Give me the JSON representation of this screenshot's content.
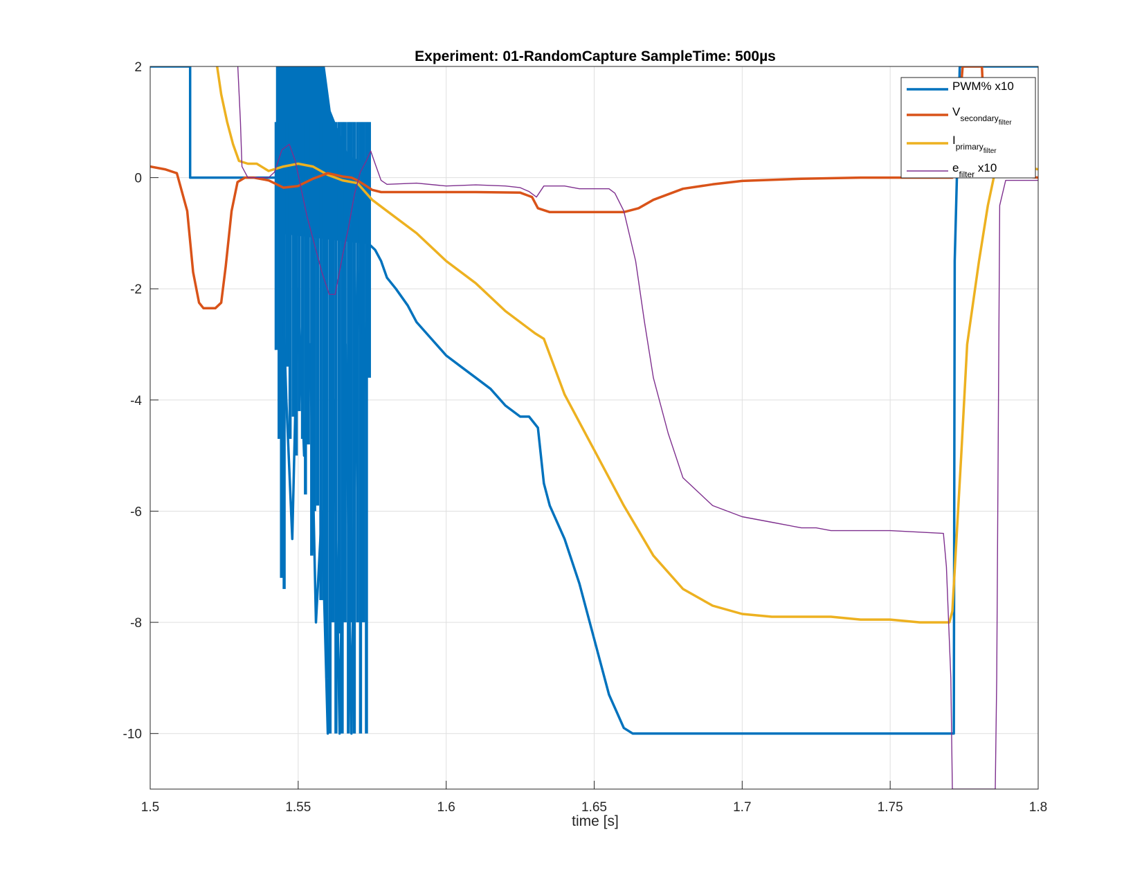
{
  "chart_data": {
    "type": "line",
    "title": "Experiment: 01-RandomCapture   SampleTime: 500µs",
    "xlabel": "time [s]",
    "ylabel": "",
    "xlim": [
      1.5,
      1.8
    ],
    "ylim": [
      -11,
      2
    ],
    "xticks": [
      1.5,
      1.55,
      1.6,
      1.65,
      1.7,
      1.75,
      1.8
    ],
    "xtick_labels": [
      "1.5",
      "1.55",
      "1.6",
      "1.65",
      "1.7",
      "1.75",
      "1.8"
    ],
    "yticks": [
      2,
      0,
      -2,
      -4,
      -6,
      -8,
      -10
    ],
    "ytick_labels": [
      "2",
      "0",
      "-2",
      "-4",
      "-6",
      "-8",
      "-10"
    ],
    "grid": true,
    "legend_position": "top-right",
    "legend": [
      {
        "base": "PWM% x10",
        "sub": "",
        "subsub": "",
        "suffix": ""
      },
      {
        "base": "V",
        "sub": "secondary",
        "subsub": "filter",
        "suffix": ""
      },
      {
        "base": "I",
        "sub": "primary",
        "subsub": "filter",
        "suffix": ""
      },
      {
        "base": "e",
        "sub": "filter",
        "subsub": "",
        "suffix": " x10"
      }
    ],
    "series": [
      {
        "name": "PWM% x10",
        "color": "#0072BD",
        "width": 3.5,
        "x": [
          1.5,
          1.5135,
          1.5135,
          1.5335,
          1.5425,
          1.5445,
          1.546,
          1.548,
          1.55,
          1.552,
          1.554,
          1.556,
          1.558,
          1.56,
          1.562,
          1.564,
          1.566,
          1.568,
          1.57,
          1.572,
          1.574,
          1.576,
          1.578,
          1.58,
          1.583,
          1.587,
          1.59,
          1.595,
          1.6,
          1.605,
          1.61,
          1.615,
          1.62,
          1.625,
          1.628,
          1.631,
          1.633,
          1.635,
          1.64,
          1.645,
          1.65,
          1.655,
          1.66,
          1.663,
          1.664,
          1.7,
          1.75,
          1.7715,
          1.7718,
          1.7735,
          1.8
        ],
        "y": [
          2,
          2,
          0,
          0,
          0,
          -1.5,
          -4,
          -6.5,
          -2,
          -5,
          -3,
          -8,
          -6,
          -10,
          -4,
          -10,
          -3,
          -10,
          -1.5,
          -4,
          -1.2,
          -1.3,
          -1.5,
          -1.8,
          -2.0,
          -2.3,
          -2.6,
          -2.9,
          -3.2,
          -3.4,
          -3.6,
          -3.8,
          -4.1,
          -4.3,
          -4.3,
          -4.5,
          -5.5,
          -5.9,
          -6.5,
          -7.3,
          -8.3,
          -9.3,
          -9.9,
          -10,
          -10,
          -10,
          -10,
          -10,
          -1.5,
          2,
          2
        ]
      },
      {
        "name": "V secondary filter",
        "color": "#D95319",
        "width": 3.5,
        "x": [
          1.5,
          1.505,
          1.509,
          1.5125,
          1.5145,
          1.5165,
          1.518,
          1.522,
          1.524,
          1.5255,
          1.5275,
          1.5295,
          1.532,
          1.535,
          1.54,
          1.545,
          1.55,
          1.555,
          1.56,
          1.565,
          1.568,
          1.57,
          1.573,
          1.575,
          1.578,
          1.585,
          1.6,
          1.61,
          1.625,
          1.629,
          1.631,
          1.635,
          1.64,
          1.65,
          1.66,
          1.665,
          1.67,
          1.675,
          1.68,
          1.69,
          1.7,
          1.72,
          1.74,
          1.76,
          1.77,
          1.771,
          1.773,
          1.7745,
          1.781,
          1.782,
          1.79,
          1.8
        ],
        "y": [
          0.2,
          0.15,
          0.08,
          -0.6,
          -1.7,
          -2.25,
          -2.35,
          -2.35,
          -2.25,
          -1.6,
          -0.6,
          -0.08,
          0.0,
          0.0,
          -0.05,
          -0.18,
          -0.15,
          -0.02,
          0.08,
          0.02,
          0.0,
          -0.05,
          -0.15,
          -0.22,
          -0.26,
          -0.26,
          -0.26,
          -0.26,
          -0.27,
          -0.35,
          -0.55,
          -0.62,
          -0.62,
          -0.62,
          -0.62,
          -0.55,
          -0.4,
          -0.3,
          -0.2,
          -0.12,
          -0.06,
          -0.02,
          0.0,
          0.0,
          0.0,
          0.0,
          1.0,
          2.0,
          2.0,
          0.8,
          0.05,
          0.0
        ]
      },
      {
        "name": "I primary filter",
        "color": "#EDB120",
        "width": 3.5,
        "x": [
          1.5226,
          1.524,
          1.526,
          1.528,
          1.53,
          1.533,
          1.536,
          1.54,
          1.545,
          1.55,
          1.555,
          1.56,
          1.565,
          1.57,
          1.575,
          1.58,
          1.59,
          1.6,
          1.61,
          1.62,
          1.63,
          1.633,
          1.64,
          1.65,
          1.66,
          1.67,
          1.68,
          1.69,
          1.7,
          1.71,
          1.72,
          1.73,
          1.74,
          1.75,
          1.76,
          1.77,
          1.771,
          1.774,
          1.776,
          1.78,
          1.783,
          1.785,
          1.787,
          1.79,
          1.795,
          1.8
        ],
        "y": [
          2.0,
          1.5,
          1.0,
          0.6,
          0.3,
          0.25,
          0.25,
          0.12,
          0.2,
          0.25,
          0.2,
          0.05,
          -0.05,
          -0.1,
          -0.4,
          -0.6,
          -1.0,
          -1.5,
          -1.9,
          -2.4,
          -2.8,
          -2.9,
          -3.9,
          -4.9,
          -5.9,
          -6.8,
          -7.4,
          -7.7,
          -7.85,
          -7.9,
          -7.9,
          -7.9,
          -7.95,
          -7.95,
          -8.0,
          -8.0,
          -7.8,
          -5.0,
          -3.0,
          -1.5,
          -0.5,
          0.0,
          0.15,
          0.2,
          0.2,
          0.15
        ]
      },
      {
        "name": "e filter x10",
        "color": "#7E2F8E",
        "width": 1.4,
        "x": [
          1.5296,
          1.5305,
          1.531,
          1.533,
          1.535,
          1.54,
          1.542,
          1.5445,
          1.547,
          1.549,
          1.551,
          1.553,
          1.555,
          1.558,
          1.5605,
          1.5625,
          1.565,
          1.567,
          1.569,
          1.571,
          1.573,
          1.5745,
          1.576,
          1.578,
          1.58,
          1.59,
          1.6,
          1.61,
          1.62,
          1.625,
          1.628,
          1.6305,
          1.633,
          1.64,
          1.645,
          1.65,
          1.655,
          1.657,
          1.66,
          1.664,
          1.667,
          1.67,
          1.675,
          1.68,
          1.69,
          1.7,
          1.71,
          1.72,
          1.725,
          1.73,
          1.75,
          1.768,
          1.769,
          1.7705,
          1.771,
          1.7713,
          1.7855,
          1.786,
          1.787,
          1.789,
          1.8
        ],
        "y": [
          2.0,
          1.0,
          0.2,
          0.0,
          0.0,
          0.0,
          0.1,
          0.5,
          0.6,
          0.3,
          -0.2,
          -0.7,
          -1.1,
          -1.7,
          -2.1,
          -2.1,
          -1.4,
          -0.9,
          -0.3,
          0.1,
          0.3,
          0.48,
          0.25,
          -0.05,
          -0.12,
          -0.1,
          -0.15,
          -0.13,
          -0.15,
          -0.18,
          -0.25,
          -0.35,
          -0.15,
          -0.15,
          -0.2,
          -0.2,
          -0.2,
          -0.28,
          -0.6,
          -1.5,
          -2.6,
          -3.6,
          -4.6,
          -5.4,
          -5.9,
          -6.1,
          -6.2,
          -6.3,
          -6.3,
          -6.35,
          -6.35,
          -6.4,
          -7.0,
          -9.0,
          -11.0,
          -11.0,
          -11.0,
          -9.0,
          -0.5,
          -0.05,
          -0.05
        ]
      }
    ],
    "pwm_bursts": [
      {
        "x": 1.5425,
        "bottom": -3.1
      },
      {
        "x": 1.5435,
        "bottom": -4.7
      },
      {
        "x": 1.5443,
        "bottom": -7.2
      },
      {
        "x": 1.5452,
        "bottom": -7.4
      },
      {
        "x": 1.5462,
        "bottom": -3.4
      },
      {
        "x": 1.5472,
        "bottom": -4.7
      },
      {
        "x": 1.5483,
        "bottom": -4.3
      },
      {
        "x": 1.5493,
        "bottom": -5.0
      },
      {
        "x": 1.5503,
        "bottom": -4.2
      },
      {
        "x": 1.5514,
        "bottom": -4.7
      },
      {
        "x": 1.5524,
        "bottom": -5.7
      },
      {
        "x": 1.5534,
        "bottom": -4.8
      },
      {
        "x": 1.5545,
        "bottom": -6.8
      },
      {
        "x": 1.5555,
        "bottom": -6.0
      },
      {
        "x": 1.5565,
        "bottom": -5.9
      },
      {
        "x": 1.5576,
        "bottom": -7.6
      },
      {
        "x": 1.5586,
        "bottom": -7.6
      },
      {
        "x": 1.5596,
        "bottom": -9.0
      },
      {
        "x": 1.5607,
        "bottom": -10.0
      },
      {
        "x": 1.5617,
        "bottom": -8.0
      },
      {
        "x": 1.5627,
        "bottom": -10.0
      },
      {
        "x": 1.5638,
        "bottom": -8.2
      },
      {
        "x": 1.5648,
        "bottom": -10.0
      },
      {
        "x": 1.5658,
        "bottom": -8.0
      },
      {
        "x": 1.5669,
        "bottom": -10.0
      },
      {
        "x": 1.5679,
        "bottom": -8.0
      },
      {
        "x": 1.5689,
        "bottom": -10.0
      },
      {
        "x": 1.57,
        "bottom": -8.0
      },
      {
        "x": 1.571,
        "bottom": -10.0
      },
      {
        "x": 1.572,
        "bottom": -8.0
      },
      {
        "x": 1.573,
        "bottom": -10.0
      },
      {
        "x": 1.574,
        "bottom": -3.6
      }
    ],
    "pwm_burst_tops": [
      2,
      2,
      1.2,
      0.4,
      0.3,
      0.4
    ],
    "pwm_burst_top_x": [
      1.5425,
      1.559,
      1.561,
      1.567,
      1.571,
      1.574
    ]
  }
}
